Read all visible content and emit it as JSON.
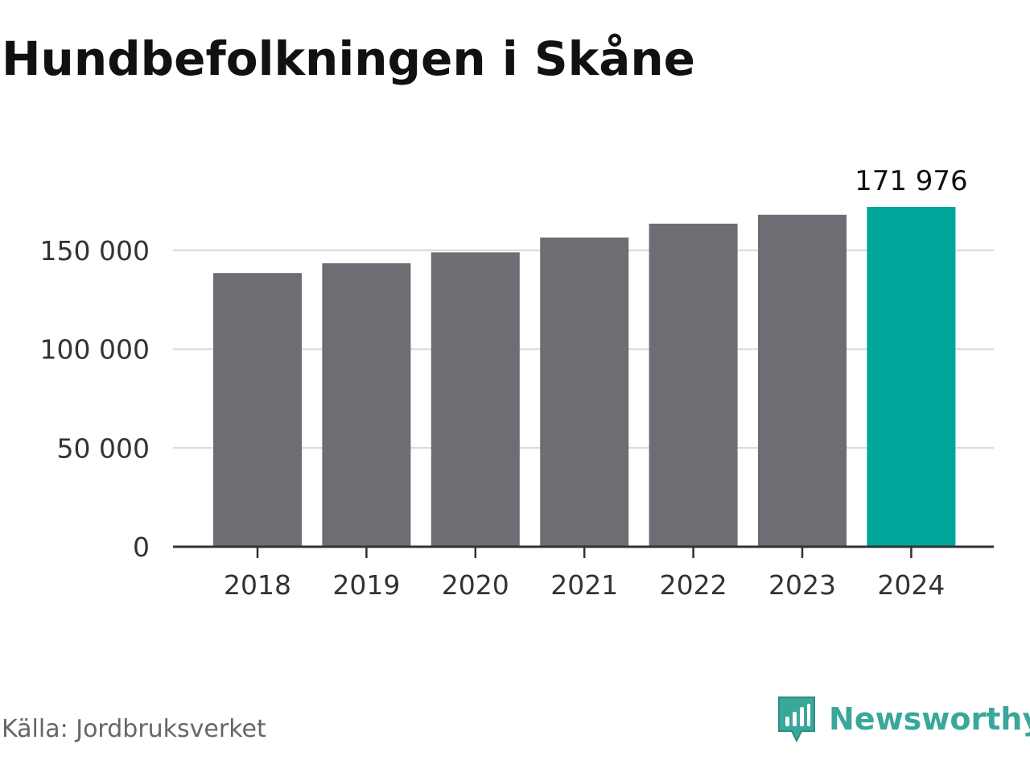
{
  "title": "Hundbefolkningen i Skåne",
  "source": "Källa: Jordbruksverket",
  "brand": {
    "name": "Newsworthy",
    "icon": "newsworthy-logo-icon"
  },
  "colors": {
    "bar": "#6e6d73",
    "highlight": "#00a69a",
    "grid": "#dddddd",
    "axis": "#333333",
    "brand": "#3aa79b"
  },
  "chart_data": {
    "type": "bar",
    "categories": [
      "2018",
      "2019",
      "2020",
      "2021",
      "2022",
      "2023",
      "2024"
    ],
    "values": [
      138500,
      143500,
      149000,
      156500,
      163500,
      168000,
      171976
    ],
    "highlight_index": 6,
    "data_labels": [
      {
        "index": 6,
        "text": "171 976"
      }
    ],
    "yticks": [
      0,
      50000,
      100000,
      150000
    ],
    "ytick_labels": [
      "0",
      "50 000",
      "100 000",
      "150 000"
    ],
    "ylim": [
      0,
      171976
    ],
    "title": "Hundbefolkningen i Skåne",
    "xlabel": "",
    "ylabel": "",
    "grid": true
  }
}
